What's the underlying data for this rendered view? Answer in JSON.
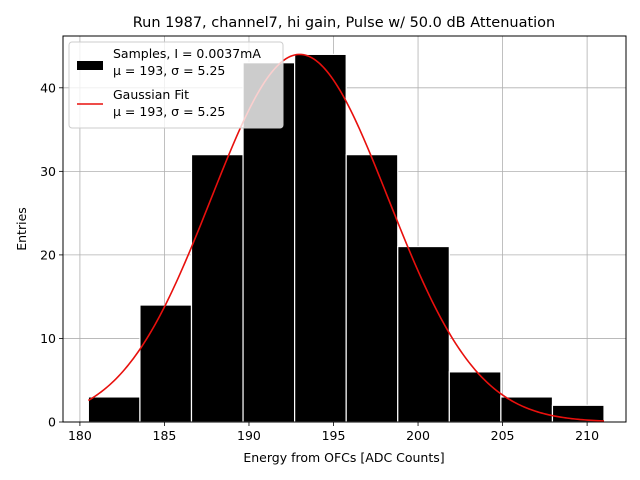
{
  "chart_data": {
    "type": "bar",
    "title": "Run 1987, channel7, hi gain, Pulse w/ 50.0 dB Attenuation",
    "xlabel": "Energy from OFCs [ADC Counts]",
    "ylabel": "Entries",
    "xlim": [
      179.0,
      212.3
    ],
    "ylim": [
      0,
      46.2
    ],
    "xticks": [
      180,
      185,
      190,
      195,
      200,
      205,
      210
    ],
    "yticks": [
      0,
      10,
      20,
      30,
      40
    ],
    "grid": true,
    "legend_position": "top-left",
    "histogram": {
      "name_line1": "Samples, I = 0.0037mA",
      "name_line2": "μ = 193, σ = 5.25",
      "color": "#000000",
      "edge_color": "#ffffff",
      "bin_edges": [
        180.5,
        183.55,
        186.6,
        189.65,
        192.7,
        195.75,
        198.8,
        201.85,
        204.9,
        207.95,
        211.0
      ],
      "counts": [
        3,
        14,
        32,
        43,
        44,
        32,
        21,
        6,
        3,
        2
      ]
    },
    "fit": {
      "name_line1": "Gaussian Fit",
      "name_line2": "μ = 193, σ = 5.25",
      "color": "#e8100d",
      "amplitude": 44.0,
      "mu": 193.0,
      "sigma": 5.25,
      "x_range": [
        180.5,
        211.0
      ]
    }
  }
}
